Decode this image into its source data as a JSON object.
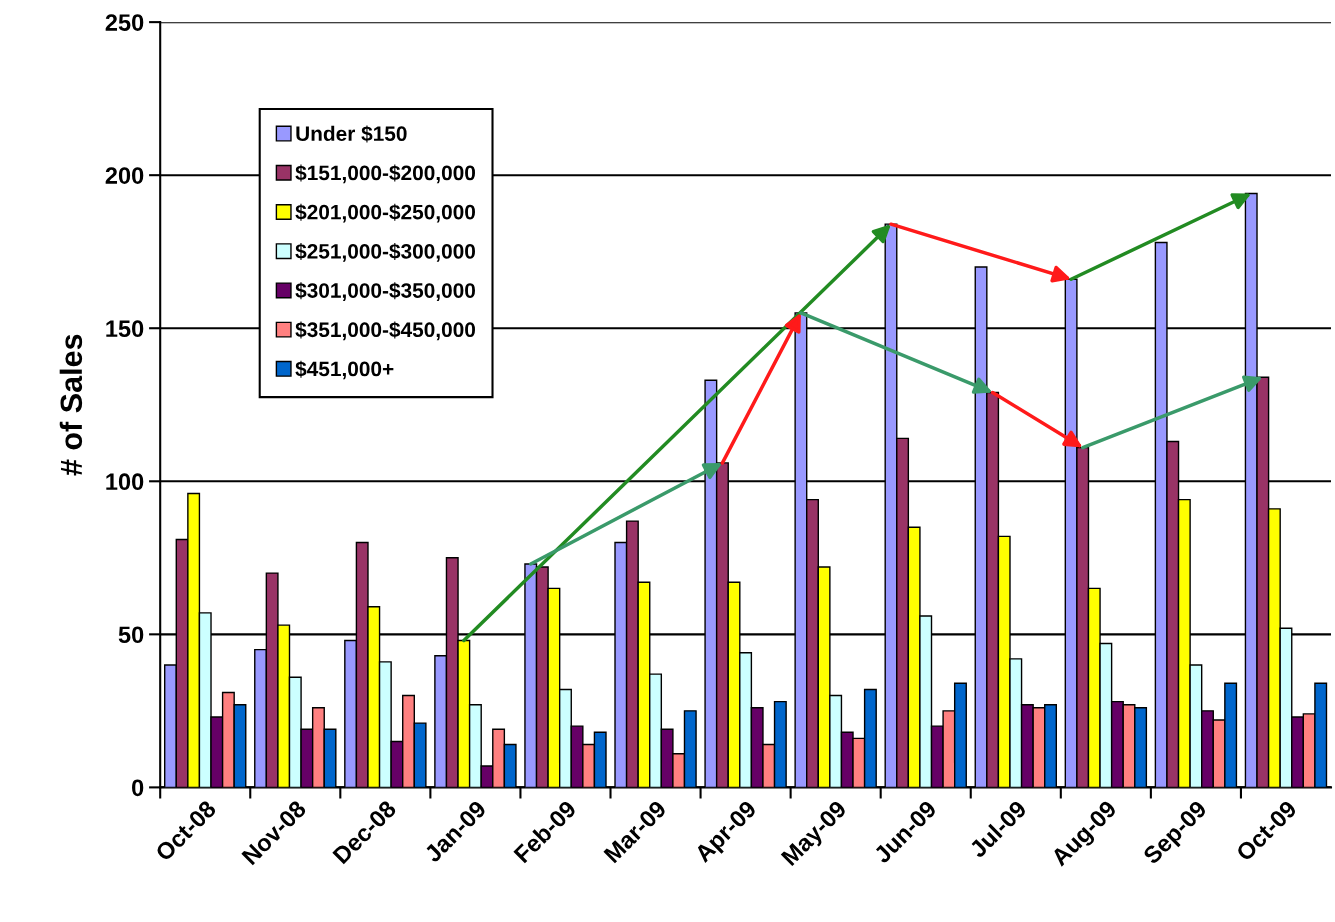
{
  "chart_data": {
    "type": "bar",
    "ylabel": "# of Sales",
    "categories": [
      "Oct-08",
      "Nov-08",
      "Dec-08",
      "Jan-09",
      "Feb-09",
      "Mar-09",
      "Apr-09",
      "May-09",
      "Jun-09",
      "Jul-09",
      "Aug-09",
      "Sep-09",
      "Oct-09"
    ],
    "series": [
      {
        "name": "Under $150",
        "color": "#9999ff",
        "values": [
          40,
          45,
          48,
          43,
          73,
          80,
          133,
          155,
          184,
          170,
          166,
          178,
          194
        ]
      },
      {
        "name": "$151,000-$200,000",
        "color": "#993366",
        "values": [
          81,
          70,
          80,
          75,
          72,
          87,
          106,
          94,
          114,
          129,
          111,
          113,
          134
        ]
      },
      {
        "name": "$201,000-$250,000",
        "color": "#ffff00",
        "values": [
          96,
          53,
          59,
          48,
          65,
          67,
          67,
          72,
          85,
          82,
          65,
          94,
          91
        ]
      },
      {
        "name": "$251,000-$300,000",
        "color": "#ccffff",
        "values": [
          57,
          36,
          41,
          27,
          32,
          37,
          44,
          30,
          56,
          42,
          47,
          40,
          52
        ]
      },
      {
        "name": "$301,000-$350,000",
        "color": "#660066",
        "values": [
          23,
          19,
          15,
          7,
          20,
          19,
          26,
          18,
          20,
          27,
          28,
          25,
          23
        ]
      },
      {
        "name": "$351,000-$450,000",
        "color": "#ff8080",
        "values": [
          31,
          26,
          30,
          19,
          14,
          11,
          14,
          16,
          25,
          26,
          27,
          22,
          24
        ]
      },
      {
        "name": "$451,000+",
        "color": "#0066cc",
        "values": [
          27,
          19,
          21,
          14,
          18,
          25,
          28,
          32,
          34,
          27,
          26,
          34,
          34
        ]
      }
    ],
    "ylim": [
      0,
      250
    ],
    "yticks": [
      0,
      50,
      100,
      150,
      200,
      250
    ],
    "grid": "y",
    "legend": "top left"
  }
}
